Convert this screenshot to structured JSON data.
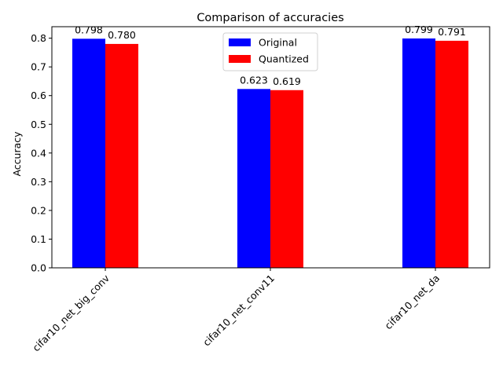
{
  "chart_data": {
    "type": "bar",
    "title": "Comparison of accuracies",
    "xlabel": "",
    "ylabel": "Accuracy",
    "categories": [
      "cifar10_net_big_conv",
      "cifar10_net_conv11",
      "cifar10_net_da"
    ],
    "series": [
      {
        "name": "Original",
        "color": "#0000ff",
        "values": [
          0.798,
          0.623,
          0.799
        ],
        "labels": [
          "0.798",
          "0.623",
          "0.799"
        ]
      },
      {
        "name": "Quantized",
        "color": "#ff0000",
        "values": [
          0.78,
          0.619,
          0.791
        ],
        "labels": [
          "0.780",
          "0.619",
          "0.791"
        ]
      }
    ],
    "ylim": [
      0,
      0.84
    ],
    "yticks": [
      "0.0",
      "0.1",
      "0.2",
      "0.3",
      "0.4",
      "0.5",
      "0.6",
      "0.7",
      "0.8"
    ],
    "grid": false,
    "legend_position": "top-center"
  }
}
